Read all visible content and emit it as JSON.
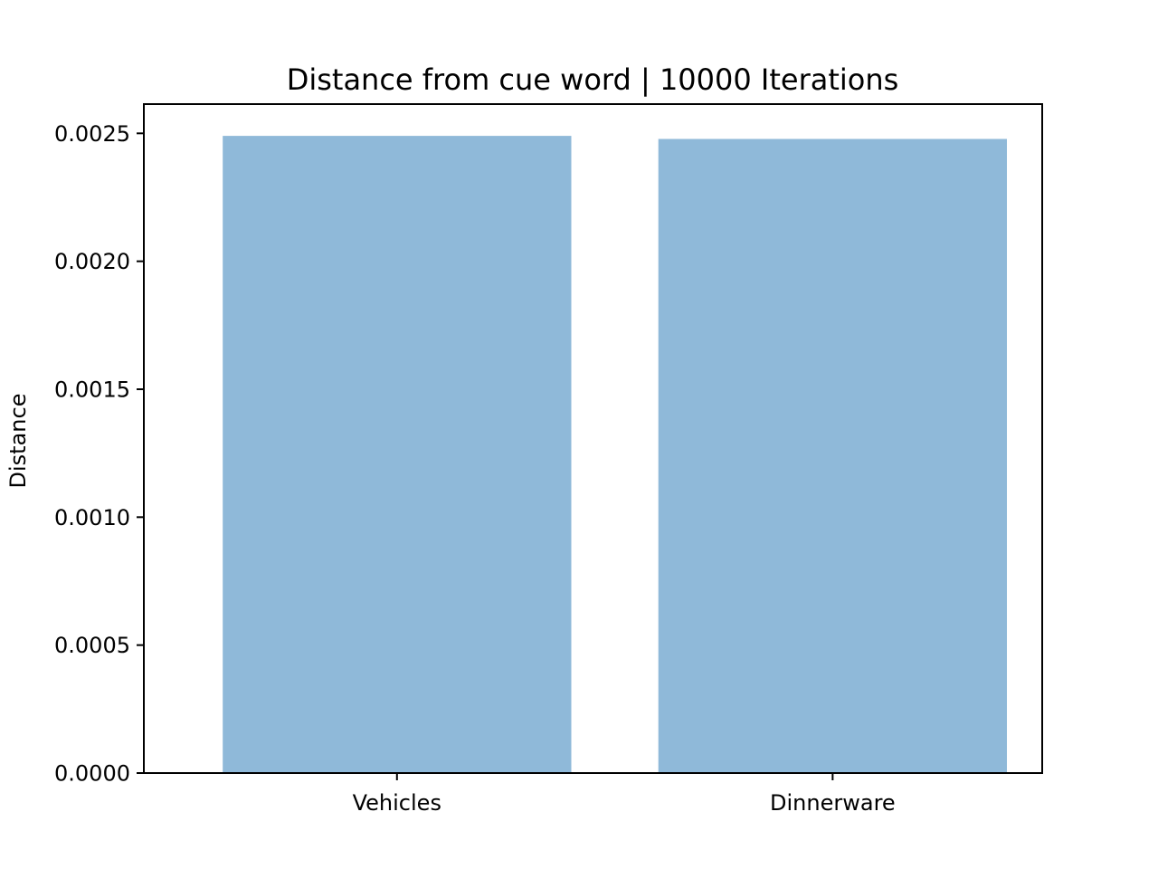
{
  "chart_data": {
    "type": "bar",
    "title": "Distance from cue word | 10000 Iterations",
    "xlabel": "",
    "ylabel": "Distance",
    "categories": [
      "Vehicles",
      "Dinnerware"
    ],
    "values": [
      0.00249,
      0.002478
    ],
    "ylim": [
      0,
      0.0026143
    ],
    "yticks": [
      0.0,
      0.0005,
      0.001,
      0.0015,
      0.002,
      0.0025
    ],
    "ytick_labels": [
      "0.0000",
      "0.0005",
      "0.0010",
      "0.0015",
      "0.0020",
      "0.0025"
    ],
    "bar_color": "#8fb9d9",
    "grid": false,
    "legend": "none"
  }
}
